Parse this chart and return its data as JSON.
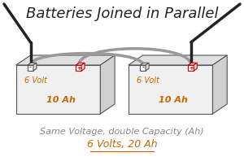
{
  "title": "Batteries Joined in Parallel",
  "title_style": "italic",
  "title_fontsize": 13,
  "subtitle1": "Same Voltage, double Capacity (Ah)",
  "subtitle1_style": "italic",
  "subtitle1_color": "#888888",
  "subtitle2": "6 Volts, 20 Ah",
  "subtitle2_style": "italic",
  "subtitle2_color": "#cc6600",
  "volt_label": "6 Volt",
  "ah_label": "10 Ah",
  "volt_color": "#cc6600",
  "ah_color": "#cc6600",
  "battery_face_color": "#f0f0f0",
  "battery_edge_color": "#555555",
  "battery_top_color": "#e0e0e0",
  "battery_side_color": "#d0d0d0",
  "neg_terminal_color": "#555555",
  "pos_terminal_color": "#cc0000",
  "wire_black_color": "#222222",
  "wire_gray_color": "#999999",
  "bg_color": "#ffffff"
}
